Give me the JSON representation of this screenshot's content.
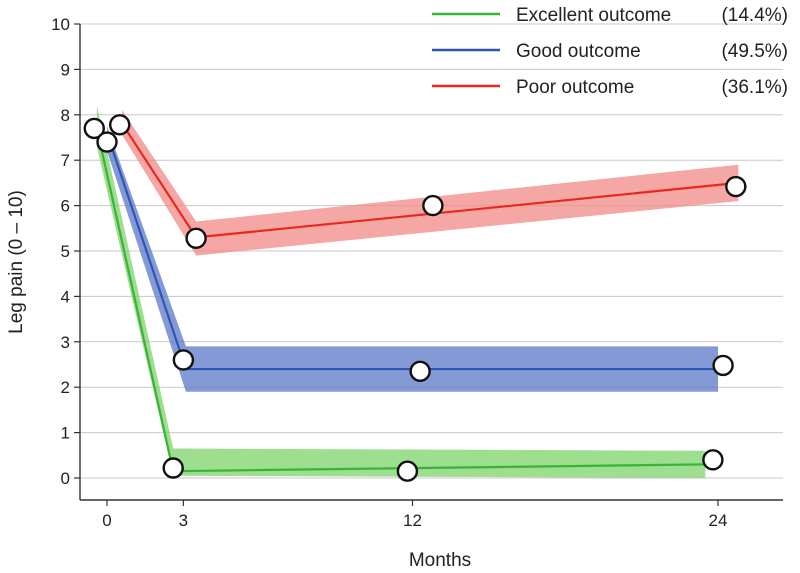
{
  "chart_data": {
    "type": "line",
    "title": "",
    "xlabel": "Months",
    "ylabel": "Leg pain (0 – 10)",
    "xlim": [
      -1,
      26.5
    ],
    "ylim": [
      -0.5,
      10
    ],
    "xticks": [
      0,
      3,
      12,
      24
    ],
    "yticks": [
      0,
      1,
      2,
      3,
      4,
      5,
      6,
      7,
      8,
      9,
      10
    ],
    "grid": "horizontal",
    "legend_position": "top-right",
    "series": [
      {
        "name": "Excellent outcome",
        "share": "(14.4%)",
        "color": "#3bb33b",
        "band_color": "#7dd36a",
        "line": [
          [
            -0.4,
            7.7
          ],
          [
            2.6,
            0.15
          ],
          [
            23.5,
            0.3
          ]
        ],
        "band_upper": [
          [
            -0.4,
            8.2
          ],
          [
            2.6,
            0.65
          ],
          [
            23.5,
            0.6
          ]
        ],
        "band_lower": [
          [
            -0.4,
            7.3
          ],
          [
            2.6,
            0.05
          ],
          [
            23.5,
            0.0
          ]
        ],
        "points": [
          [
            -0.5,
            7.7
          ],
          [
            2.6,
            0.22
          ],
          [
            11.8,
            0.15
          ],
          [
            23.8,
            0.4
          ]
        ]
      },
      {
        "name": "Good outcome",
        "share": "(49.5%)",
        "color": "#2e55b5",
        "band_color": "#5b78c8",
        "line": [
          [
            0.0,
            7.6
          ],
          [
            3.1,
            2.4
          ],
          [
            24.0,
            2.4
          ]
        ],
        "band_upper": [
          [
            0.0,
            7.75
          ],
          [
            3.1,
            2.9
          ],
          [
            24.0,
            2.9
          ]
        ],
        "band_lower": [
          [
            0.0,
            7.2
          ],
          [
            3.1,
            1.9
          ],
          [
            24.0,
            1.9
          ]
        ],
        "points": [
          [
            0.0,
            7.4
          ],
          [
            3.0,
            2.6
          ],
          [
            12.3,
            2.35
          ],
          [
            24.2,
            2.48
          ]
        ]
      },
      {
        "name": "Poor outcome",
        "share": "(36.1%)",
        "color": "#e8281e",
        "band_color": "#f08a85",
        "line": [
          [
            0.6,
            7.8
          ],
          [
            3.5,
            5.3
          ],
          [
            24.8,
            6.5
          ]
        ],
        "band_upper": [
          [
            0.6,
            8.1
          ],
          [
            3.5,
            5.65
          ],
          [
            24.8,
            6.9
          ]
        ],
        "band_lower": [
          [
            0.6,
            7.55
          ],
          [
            3.5,
            4.9
          ],
          [
            24.8,
            6.1
          ]
        ],
        "points": [
          [
            0.5,
            7.78
          ],
          [
            3.5,
            5.28
          ],
          [
            12.8,
            6.0
          ],
          [
            24.7,
            6.42
          ]
        ]
      }
    ]
  }
}
